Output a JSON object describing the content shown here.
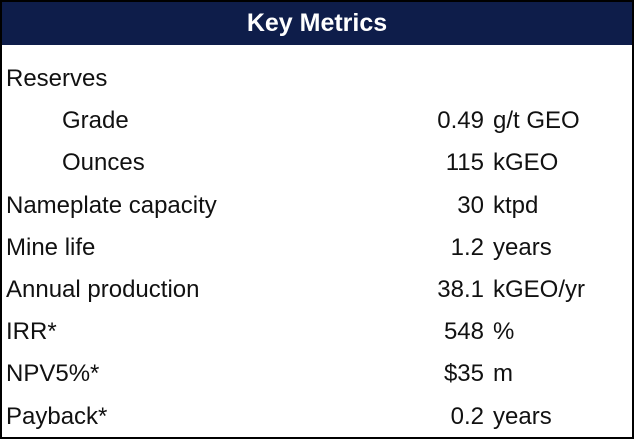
{
  "header": {
    "title": "Key Metrics"
  },
  "table": {
    "rows": [
      {
        "label": "Reserves",
        "items": [
          {
            "label": "Grade",
            "value": 0.49,
            "unit": "g/t GEO"
          },
          {
            "label": "Ounces",
            "value": 115,
            "unit": "kGEO"
          }
        ]
      },
      {
        "label": "Nameplate capacity",
        "value": 30,
        "unit": "ktpd"
      },
      {
        "label": "Mine life",
        "value": 1.2,
        "unit": "years"
      },
      {
        "label": "Annual production",
        "value": 38.1,
        "unit": "kGEO/yr"
      },
      {
        "label": "IRR*",
        "value": 548,
        "unit": "%"
      },
      {
        "label": "NPV5%*",
        "value": "$35",
        "unit": "m"
      },
      {
        "label": "Payback*",
        "value": 0.2,
        "unit": "years"
      }
    ]
  }
}
